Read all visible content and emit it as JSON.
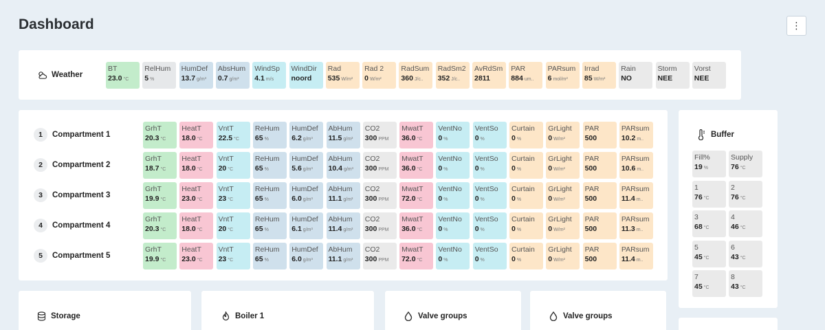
{
  "page": {
    "title": "Dashboard"
  },
  "weather": {
    "label": "Weather",
    "tiles": [
      {
        "l": "BT",
        "v": "23.0",
        "u": "°C",
        "c": "c-green"
      },
      {
        "l": "RelHum",
        "v": "5",
        "u": "%",
        "c": "c-gray"
      },
      {
        "l": "HumDef",
        "v": "13.7",
        "u": "g/m³",
        "c": "c-blue"
      },
      {
        "l": "AbsHum",
        "v": "0.7",
        "u": "g/m³",
        "c": "c-blue"
      },
      {
        "l": "WindSp",
        "v": "4.1",
        "u": "m/s",
        "c": "c-cyan"
      },
      {
        "l": "WindDir",
        "v": "noord",
        "u": "",
        "c": "c-cyan"
      },
      {
        "l": "Rad",
        "v": "535",
        "u": "W/m²",
        "c": "c-orange"
      },
      {
        "l": "Rad 2",
        "v": "0",
        "u": "W/m²",
        "c": "c-orange"
      },
      {
        "l": "RadSum",
        "v": "360",
        "u": "J/c..",
        "c": "c-orange"
      },
      {
        "l": "RadSm2",
        "v": "352",
        "u": "J/c..",
        "c": "c-orange"
      },
      {
        "l": "AvRdSm",
        "v": "2811",
        "u": "",
        "c": "c-orange"
      },
      {
        "l": "PAR",
        "v": "884",
        "u": "um..",
        "c": "c-orange"
      },
      {
        "l": "PARsum",
        "v": "6",
        "u": "mol/m²",
        "c": "c-orange"
      },
      {
        "l": "Irrad",
        "v": "85",
        "u": "W/m²",
        "c": "c-orange"
      },
      {
        "l": "Rain",
        "v": "NO",
        "u": "",
        "c": "c-lgray"
      },
      {
        "l": "Storm",
        "v": "NEE",
        "u": "",
        "c": "c-lgray"
      },
      {
        "l": "Vorst",
        "v": "NEE",
        "u": "",
        "c": "c-lgray"
      }
    ]
  },
  "compartments": [
    {
      "num": "1",
      "name": "Compartment 1",
      "tiles": [
        {
          "l": "GrhT",
          "v": "20.3",
          "u": "°C",
          "c": "c-green"
        },
        {
          "l": "HeatT",
          "v": "18.0",
          "u": "°C",
          "c": "c-pink"
        },
        {
          "l": "VntT",
          "v": "22.5",
          "u": "°C",
          "c": "c-cyan"
        },
        {
          "l": "ReHum",
          "v": "65",
          "u": "%",
          "c": "c-blue"
        },
        {
          "l": "HumDef",
          "v": "6.2",
          "u": "g/m³",
          "c": "c-blue"
        },
        {
          "l": "AbHum",
          "v": "11.5",
          "u": "g/m³",
          "c": "c-blue"
        },
        {
          "l": "CO2",
          "v": "300",
          "u": "PPM",
          "c": "c-lgray"
        },
        {
          "l": "MwatT",
          "v": "36.0",
          "u": "°C",
          "c": "c-pink"
        },
        {
          "l": "VentNo",
          "v": "0",
          "u": "%",
          "c": "c-cyan"
        },
        {
          "l": "VentSo",
          "v": "0",
          "u": "%",
          "c": "c-cyan"
        },
        {
          "l": "Curtain",
          "v": "0",
          "u": "%",
          "c": "c-orange"
        },
        {
          "l": "GrLight",
          "v": "0",
          "u": "W/m²",
          "c": "c-orange"
        },
        {
          "l": "PAR",
          "v": "500",
          "u": "",
          "c": "c-orange"
        },
        {
          "l": "PARsum",
          "v": "10.2",
          "u": "m..",
          "c": "c-orange"
        }
      ]
    },
    {
      "num": "2",
      "name": "Compartment 2",
      "tiles": [
        {
          "l": "GrhT",
          "v": "18.7",
          "u": "°C",
          "c": "c-green"
        },
        {
          "l": "HeatT",
          "v": "18.0",
          "u": "°C",
          "c": "c-pink"
        },
        {
          "l": "VntT",
          "v": "20",
          "u": "°C",
          "c": "c-cyan"
        },
        {
          "l": "ReHum",
          "v": "65",
          "u": "%",
          "c": "c-blue"
        },
        {
          "l": "HumDef",
          "v": "5.6",
          "u": "g/m³",
          "c": "c-blue"
        },
        {
          "l": "AbHum",
          "v": "10.4",
          "u": "g/m³",
          "c": "c-blue"
        },
        {
          "l": "CO2",
          "v": "300",
          "u": "PPM",
          "c": "c-lgray"
        },
        {
          "l": "MwatT",
          "v": "36.0",
          "u": "°C",
          "c": "c-pink"
        },
        {
          "l": "VentNo",
          "v": "0",
          "u": "%",
          "c": "c-cyan"
        },
        {
          "l": "VentSo",
          "v": "0",
          "u": "%",
          "c": "c-cyan"
        },
        {
          "l": "Curtain",
          "v": "0",
          "u": "%",
          "c": "c-orange"
        },
        {
          "l": "GrLight",
          "v": "0",
          "u": "W/m²",
          "c": "c-orange"
        },
        {
          "l": "PAR",
          "v": "500",
          "u": "",
          "c": "c-orange"
        },
        {
          "l": "PARsum",
          "v": "10.6",
          "u": "m..",
          "c": "c-orange"
        }
      ]
    },
    {
      "num": "3",
      "name": "Compartment 3",
      "tiles": [
        {
          "l": "GrhT",
          "v": "19.9",
          "u": "°C",
          "c": "c-green"
        },
        {
          "l": "HeatT",
          "v": "23.0",
          "u": "°C",
          "c": "c-pink"
        },
        {
          "l": "VntT",
          "v": "23",
          "u": "°C",
          "c": "c-cyan"
        },
        {
          "l": "ReHum",
          "v": "65",
          "u": "%",
          "c": "c-blue"
        },
        {
          "l": "HumDef",
          "v": "6.0",
          "u": "g/m³",
          "c": "c-blue"
        },
        {
          "l": "AbHum",
          "v": "11.1",
          "u": "g/m³",
          "c": "c-blue"
        },
        {
          "l": "CO2",
          "v": "300",
          "u": "PPM",
          "c": "c-lgray"
        },
        {
          "l": "MwatT",
          "v": "72.0",
          "u": "°C",
          "c": "c-pink"
        },
        {
          "l": "VentNo",
          "v": "0",
          "u": "%",
          "c": "c-cyan"
        },
        {
          "l": "VentSo",
          "v": "0",
          "u": "%",
          "c": "c-cyan"
        },
        {
          "l": "Curtain",
          "v": "0",
          "u": "%",
          "c": "c-orange"
        },
        {
          "l": "GrLight",
          "v": "0",
          "u": "W/m²",
          "c": "c-orange"
        },
        {
          "l": "PAR",
          "v": "500",
          "u": "",
          "c": "c-orange"
        },
        {
          "l": "PARsum",
          "v": "11.4",
          "u": "m..",
          "c": "c-orange"
        }
      ]
    },
    {
      "num": "4",
      "name": "Compartment 4",
      "tiles": [
        {
          "l": "GrhT",
          "v": "20.3",
          "u": "°C",
          "c": "c-green"
        },
        {
          "l": "HeatT",
          "v": "18.0",
          "u": "°C",
          "c": "c-pink"
        },
        {
          "l": "VntT",
          "v": "20",
          "u": "°C",
          "c": "c-cyan"
        },
        {
          "l": "ReHum",
          "v": "65",
          "u": "%",
          "c": "c-blue"
        },
        {
          "l": "HumDef",
          "v": "6.1",
          "u": "g/m³",
          "c": "c-blue"
        },
        {
          "l": "AbHum",
          "v": "11.4",
          "u": "g/m³",
          "c": "c-blue"
        },
        {
          "l": "CO2",
          "v": "300",
          "u": "PPM",
          "c": "c-lgray"
        },
        {
          "l": "MwatT",
          "v": "36.0",
          "u": "°C",
          "c": "c-pink"
        },
        {
          "l": "VentNo",
          "v": "0",
          "u": "%",
          "c": "c-cyan"
        },
        {
          "l": "VentSo",
          "v": "0",
          "u": "%",
          "c": "c-cyan"
        },
        {
          "l": "Curtain",
          "v": "0",
          "u": "%",
          "c": "c-orange"
        },
        {
          "l": "GrLight",
          "v": "0",
          "u": "W/m²",
          "c": "c-orange"
        },
        {
          "l": "PAR",
          "v": "500",
          "u": "",
          "c": "c-orange"
        },
        {
          "l": "PARsum",
          "v": "11.3",
          "u": "m..",
          "c": "c-orange"
        }
      ]
    },
    {
      "num": "5",
      "name": "Compartment 5",
      "tiles": [
        {
          "l": "GrhT",
          "v": "19.9",
          "u": "°C",
          "c": "c-green"
        },
        {
          "l": "HeatT",
          "v": "23.0",
          "u": "°C",
          "c": "c-pink"
        },
        {
          "l": "VntT",
          "v": "23",
          "u": "°C",
          "c": "c-cyan"
        },
        {
          "l": "ReHum",
          "v": "65",
          "u": "%",
          "c": "c-blue"
        },
        {
          "l": "HumDef",
          "v": "6.0",
          "u": "g/m³",
          "c": "c-blue"
        },
        {
          "l": "AbHum",
          "v": "11.1",
          "u": "g/m³",
          "c": "c-blue"
        },
        {
          "l": "CO2",
          "v": "300",
          "u": "PPM",
          "c": "c-lgray"
        },
        {
          "l": "MwatT",
          "v": "72.0",
          "u": "°C",
          "c": "c-pink"
        },
        {
          "l": "VentNo",
          "v": "0",
          "u": "%",
          "c": "c-cyan"
        },
        {
          "l": "VentSo",
          "v": "0",
          "u": "%",
          "c": "c-cyan"
        },
        {
          "l": "Curtain",
          "v": "0",
          "u": "%",
          "c": "c-orange"
        },
        {
          "l": "GrLight",
          "v": "0",
          "u": "W/m²",
          "c": "c-orange"
        },
        {
          "l": "PAR",
          "v": "500",
          "u": "",
          "c": "c-orange"
        },
        {
          "l": "PARsum",
          "v": "11.4",
          "u": "m..",
          "c": "c-orange"
        }
      ]
    }
  ],
  "buffer": {
    "label": "Buffer",
    "tiles": [
      {
        "l": "Fill%",
        "v": "19",
        "u": "%"
      },
      {
        "l": "Supply",
        "v": "76",
        "u": "°C"
      },
      {
        "l": "1",
        "v": "76",
        "u": "°C"
      },
      {
        "l": "2",
        "v": "76",
        "u": "°C"
      },
      {
        "l": "3",
        "v": "68",
        "u": "°C"
      },
      {
        "l": "4",
        "v": "46",
        "u": "°C"
      },
      {
        "l": "5",
        "v": "45",
        "u": "°C"
      },
      {
        "l": "6",
        "v": "43",
        "u": "°C"
      },
      {
        "l": "7",
        "v": "45",
        "u": "°C"
      },
      {
        "l": "8",
        "v": "43",
        "u": "°C"
      }
    ]
  },
  "bottom": {
    "storage": "Storage",
    "boiler": "Boiler 1",
    "valve_groups_1": "Valve groups",
    "valve_groups_2": "Valve groups"
  },
  "icons": {
    "menu": "more-vertical-icon",
    "weather": "cloud-sun-icon",
    "buffer": "thermometer-icon",
    "storage": "database-icon",
    "boiler": "flame-icon",
    "valve": "droplet-icon"
  }
}
